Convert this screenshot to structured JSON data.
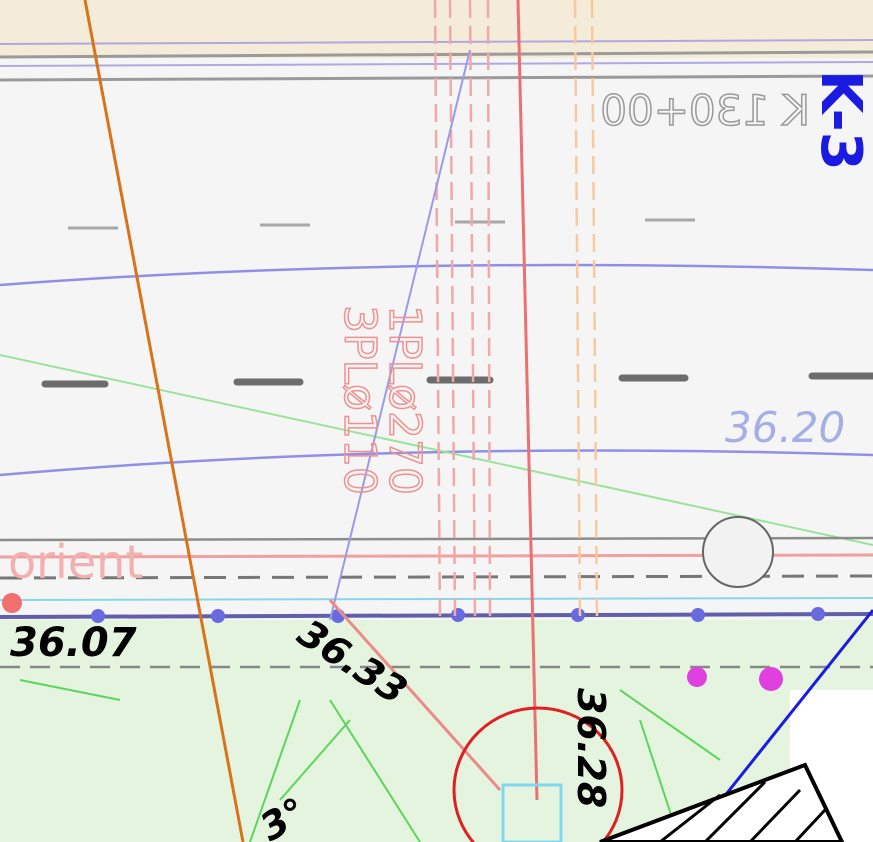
{
  "station": "K 130+00",
  "route": "K-3",
  "street": "orient",
  "pipes": [
    "1PLø270",
    "3PLø110"
  ],
  "elevations": [
    "36.20",
    "36.07",
    "36.33",
    "36.28",
    "3°"
  ]
}
